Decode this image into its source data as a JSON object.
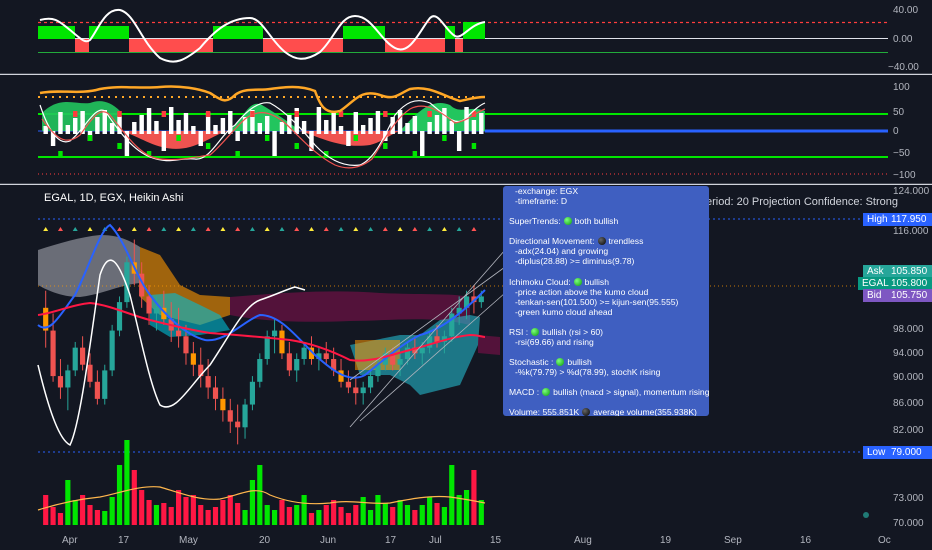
{
  "chart": {
    "title": "EGAL, 1D, EGX, Heikin Ashi",
    "projection_text": "eriod: 20  Projection Confidence: Strong"
  },
  "osc1_axis": [
    "40.00",
    "0.00",
    "−40.00"
  ],
  "osc2_axis": [
    "100",
    "50",
    "0",
    "−50",
    "−100"
  ],
  "price_axis": [
    "124.000",
    "116.000",
    "98.000",
    "94.000",
    "90.000",
    "86.000",
    "82.000",
    "73.000",
    "70.000"
  ],
  "price_tags": {
    "high": {
      "label": "High",
      "value": "117.950",
      "color": "#2962ff"
    },
    "ask": {
      "label": "Ask",
      "value": "105.850",
      "color": "#26a69a"
    },
    "egal": {
      "label": "EGAL",
      "value": "105.800",
      "color": "#089981"
    },
    "bid": {
      "label": "Bid",
      "value": "105.750",
      "color": "#7e57c2"
    },
    "low": {
      "label": "Low",
      "value": "79.000",
      "color": "#2962ff"
    }
  },
  "time_axis": [
    "Apr",
    "17",
    "May",
    "20",
    "Jun",
    "17",
    "Jul",
    "15",
    "Aug",
    "19",
    "Sep",
    "16",
    "Oc"
  ],
  "info_panel": [
    {
      "text": "-exchange: EGX",
      "indent": true
    },
    {
      "text": "-timeframe: D",
      "indent": true
    },
    {
      "gap": true
    },
    {
      "pre": "SuperTrends:",
      "dot": "green",
      "post": "both bullish"
    },
    {
      "gap": true
    },
    {
      "pre": "Directional Movement:",
      "dot": "black",
      "post": "trendless"
    },
    {
      "text": "-adx(24.04) and growing",
      "indent": true
    },
    {
      "text": "-diplus(28.88) >= diminus(9.78)",
      "indent": true
    },
    {
      "gap": true
    },
    {
      "pre": "Ichimoku Cloud:",
      "dot": "green",
      "post": "bullish"
    },
    {
      "text": "-price action above the kumo cloud",
      "indent": true
    },
    {
      "text": "-tenkan-sen(101.500) >= kijun-sen(95.555)",
      "indent": true
    },
    {
      "text": "-green kumo cloud ahead",
      "indent": true
    },
    {
      "gap": true
    },
    {
      "pre": "RSI :",
      "dot": "green",
      "post": "bullish (rsi > 60)"
    },
    {
      "text": "-rsi(69.66) and rising",
      "indent": true
    },
    {
      "gap": true
    },
    {
      "pre": "Stochastic :",
      "dot": "green",
      "post": "bullish"
    },
    {
      "text": "-%k(79.79) > %d(78.99), stochK rising",
      "indent": true
    },
    {
      "gap": true
    },
    {
      "pre": "MACD :",
      "dot": "green",
      "post": "bullish (macd > signal), momentum rising"
    },
    {
      "gap": true
    },
    {
      "pre": "Volume: 555.851K",
      "dot": "black",
      "post": "average volume(355.938K)"
    }
  ],
  "colors": {
    "up": "#26a69a",
    "bull": "#4caf50",
    "bear": "#ef5350",
    "bg": "#131722"
  },
  "candles": [
    [
      104,
      107,
      97,
      100
    ],
    [
      100,
      103,
      91,
      92
    ],
    [
      92,
      95,
      88,
      90
    ],
    [
      90,
      94,
      86,
      93
    ],
    [
      93,
      98,
      92,
      97
    ],
    [
      97,
      99,
      93,
      94
    ],
    [
      94,
      96,
      90,
      91
    ],
    [
      91,
      93,
      87,
      88
    ],
    [
      88,
      94,
      87,
      93
    ],
    [
      93,
      101,
      92,
      100
    ],
    [
      100,
      106,
      99,
      105
    ],
    [
      105,
      113,
      104,
      112
    ],
    [
      112,
      116,
      108,
      110
    ],
    [
      110,
      112,
      104,
      106
    ],
    [
      106,
      108,
      101,
      103
    ],
    [
      103,
      106,
      100,
      104
    ],
    [
      104,
      107,
      101,
      102
    ],
    [
      102,
      105,
      98,
      100
    ],
    [
      100,
      104,
      97,
      99
    ],
    [
      99,
      101,
      94,
      96
    ],
    [
      96,
      98,
      92,
      94
    ],
    [
      94,
      97,
      90,
      92
    ],
    [
      92,
      95,
      88,
      90
    ],
    [
      90,
      92,
      86,
      88
    ],
    [
      88,
      90,
      84,
      86
    ],
    [
      86,
      88,
      82,
      84
    ],
    [
      84,
      87,
      80,
      83
    ],
    [
      83,
      88,
      81,
      87
    ],
    [
      87,
      92,
      86,
      91
    ],
    [
      91,
      96,
      90,
      95
    ],
    [
      95,
      100,
      94,
      99
    ],
    [
      99,
      102,
      96,
      100
    ],
    [
      100,
      101,
      95,
      96
    ],
    [
      96,
      98,
      92,
      93
    ],
    [
      93,
      96,
      91,
      95
    ],
    [
      95,
      98,
      94,
      97
    ],
    [
      97,
      99,
      94,
      95
    ],
    [
      95,
      97,
      93,
      96
    ],
    [
      96,
      98,
      94,
      95
    ],
    [
      95,
      97,
      92,
      93
    ],
    [
      93,
      95,
      90,
      91
    ],
    [
      91,
      93,
      89,
      90
    ],
    [
      90,
      92,
      87,
      89
    ],
    [
      89,
      91,
      87,
      90
    ],
    [
      90,
      93,
      89,
      92
    ],
    [
      92,
      95,
      91,
      94
    ],
    [
      94,
      97,
      93,
      96
    ],
    [
      96,
      97,
      93,
      94
    ],
    [
      94,
      96,
      92,
      95
    ],
    [
      95,
      98,
      94,
      97
    ],
    [
      97,
      99,
      95,
      96
    ],
    [
      96,
      98,
      94,
      97
    ],
    [
      97,
      100,
      96,
      99
    ],
    [
      99,
      101,
      97,
      98
    ],
    [
      98,
      100,
      96,
      99
    ],
    [
      99,
      104,
      98,
      103
    ],
    [
      103,
      106,
      101,
      104
    ],
    [
      104,
      107,
      102,
      106
    ],
    [
      106,
      108,
      103,
      105
    ],
    [
      105,
      107,
      104,
      106
    ]
  ],
  "volume": [
    30,
    18,
    12,
    45,
    25,
    30,
    20,
    15,
    14,
    28,
    60,
    85,
    55,
    35,
    25,
    20,
    22,
    18,
    35,
    28,
    30,
    20,
    15,
    18,
    25,
    30,
    22,
    15,
    45,
    60,
    20,
    15,
    25,
    18,
    20,
    30,
    12,
    15,
    20,
    25,
    18,
    12,
    20,
    28,
    15,
    30,
    22,
    18,
    25,
    20,
    15,
    20,
    28,
    22,
    18,
    60,
    30,
    35,
    55,
    25
  ]
}
